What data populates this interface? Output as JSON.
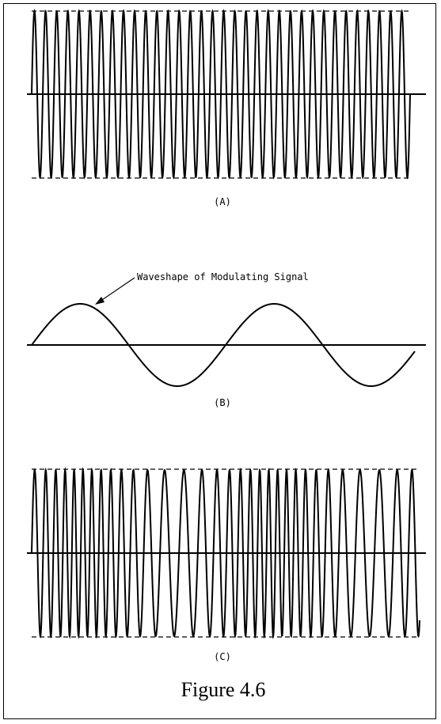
{
  "figure": {
    "caption": "Figure 4.6",
    "panels": [
      {
        "id": "A",
        "label": "(A)"
      },
      {
        "id": "B",
        "label": "(B)",
        "annotation": "Waveshape of Modulating Signal"
      },
      {
        "id": "C",
        "label": "(C)"
      }
    ]
  }
}
